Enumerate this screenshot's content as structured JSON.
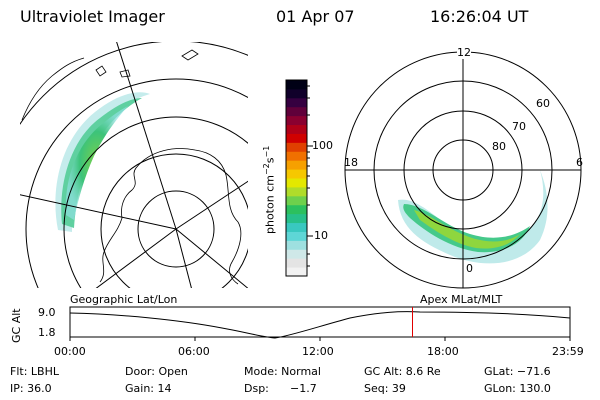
{
  "header": {
    "instrument": "Ultraviolet Imager",
    "date": "01 Apr 07",
    "time": "16:26:04 UT"
  },
  "colorbar": {
    "unit_base": "photon cm",
    "unit_exp1": "−2",
    "unit_mid": "s",
    "unit_exp2": "−1",
    "ticks": [
      "100",
      "10"
    ],
    "colors": [
      "#f2f2f2",
      "#e4e4e4",
      "#cfe8e8",
      "#9ee0e0",
      "#5ed6d6",
      "#39c8c0",
      "#27c08a",
      "#2cc05e",
      "#6ed04c",
      "#b0dc2a",
      "#e4e800",
      "#f6c800",
      "#f6a000",
      "#f07000",
      "#e04000",
      "#d00000",
      "#b00018",
      "#8a0030",
      "#60003a",
      "#350040",
      "#10002a",
      "#000015"
    ]
  },
  "left_map": {
    "label": "Geographic Lat/Lon"
  },
  "right_map": {
    "label": "Apex MLat/MLT",
    "clock_labels": {
      "top": "12",
      "left": "18",
      "right": "6",
      "bottom": "0"
    },
    "lat_labels": [
      "60",
      "70",
      "80"
    ]
  },
  "altitude_plot": {
    "ylabel": "GC Alt",
    "ymax": "9.0",
    "ymin": "1.8",
    "xticks": [
      "00:00",
      "06:00",
      "12:00",
      "18:00",
      "23:59"
    ],
    "current_time_fraction": 0.685
  },
  "status": {
    "row1": {
      "filter": "Flt: LBHL",
      "door": "Door: Open",
      "mode": "Mode: Normal",
      "gc_alt": "GC Alt: 8.6 Re",
      "glat": "GLat: −71.6"
    },
    "row2": {
      "ip": "IP: 36.0",
      "gain": "Gain: 14",
      "dsp_label": "Dsp:",
      "dsp_value": "−1.7",
      "seq": "Seq: 39",
      "glon": "GLon: 130.0"
    }
  }
}
